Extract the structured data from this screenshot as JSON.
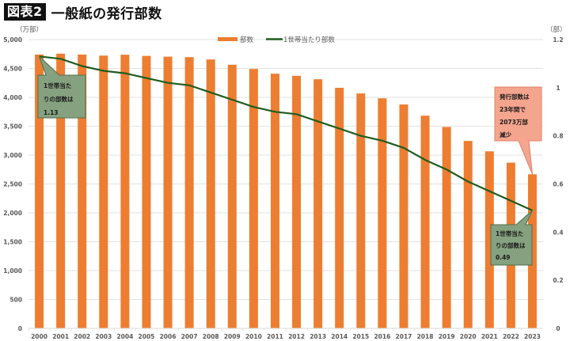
{
  "header": {
    "badge": "図表2",
    "title": "一般紙の発行部数"
  },
  "axes": {
    "left_unit": "（万部）",
    "right_unit": "（部）",
    "left_ticks": [
      "0",
      "500",
      "1,000",
      "1,500",
      "2,000",
      "2,500",
      "3,000",
      "3,500",
      "4,000",
      "4,500",
      "5,000"
    ],
    "right_ticks": [
      "0",
      "0.2",
      "0.4",
      "0.6",
      "0.8",
      "1",
      "1.2"
    ]
  },
  "legend": {
    "bar_label": "部数",
    "line_label": "1世帯当たり部数"
  },
  "colors": {
    "bar": "#ed7d31",
    "line": "#1e5c1e",
    "grid": "#d9d9d9",
    "callout_green_fill": "#86a17f",
    "callout_green_border": "#4f6e4a",
    "callout_red_fill": "#f4a58e",
    "callout_red_border": "#e0826a"
  },
  "callouts": [
    {
      "id": "start",
      "lines": [
        "1世帯当た",
        "りの部数は",
        "1.13"
      ]
    },
    {
      "id": "decline",
      "lines": [
        "発行部数は",
        "23年間で",
        "2073万部",
        "減少"
      ]
    },
    {
      "id": "end",
      "lines": [
        "1世帯当た",
        "りの部数は",
        "0.49"
      ]
    }
  ],
  "chart_data": {
    "type": "bar",
    "title": "一般紙の発行部数",
    "xlabel": "",
    "ylabel": "万部",
    "ylabel_right": "部",
    "ylim": [
      0,
      5000
    ],
    "ylim_right": [
      0,
      1.2
    ],
    "grid": true,
    "legend_position": "top",
    "categories": [
      "2000",
      "2001",
      "2002",
      "2003",
      "2004",
      "2005",
      "2006",
      "2007",
      "2008",
      "2009",
      "2010",
      "2011",
      "2012",
      "2013",
      "2014",
      "2015",
      "2016",
      "2017",
      "2018",
      "2019",
      "2020",
      "2021",
      "2022",
      "2023"
    ],
    "series": [
      {
        "name": "部数",
        "type": "bar",
        "axis": "left",
        "values": [
          4740,
          4756,
          4740,
          4722,
          4738,
          4717,
          4704,
          4696,
          4656,
          4564,
          4491,
          4409,
          4373,
          4313,
          4165,
          4067,
          3983,
          3876,
          3682,
          3487,
          3245,
          3065,
          2869,
          2667
        ]
      },
      {
        "name": "1世帯当たり部数",
        "type": "line",
        "axis": "right",
        "values": [
          1.13,
          1.12,
          1.09,
          1.07,
          1.06,
          1.04,
          1.02,
          1.01,
          0.98,
          0.95,
          0.92,
          0.9,
          0.89,
          0.86,
          0.83,
          0.8,
          0.78,
          0.75,
          0.7,
          0.66,
          0.61,
          0.57,
          0.53,
          0.49
        ]
      }
    ],
    "annotations": [
      "1世帯当たりの部数は1.13 (2000)",
      "発行部数は23年間で2073万部減少",
      "1世帯当たりの部数は0.49 (2023)"
    ]
  }
}
